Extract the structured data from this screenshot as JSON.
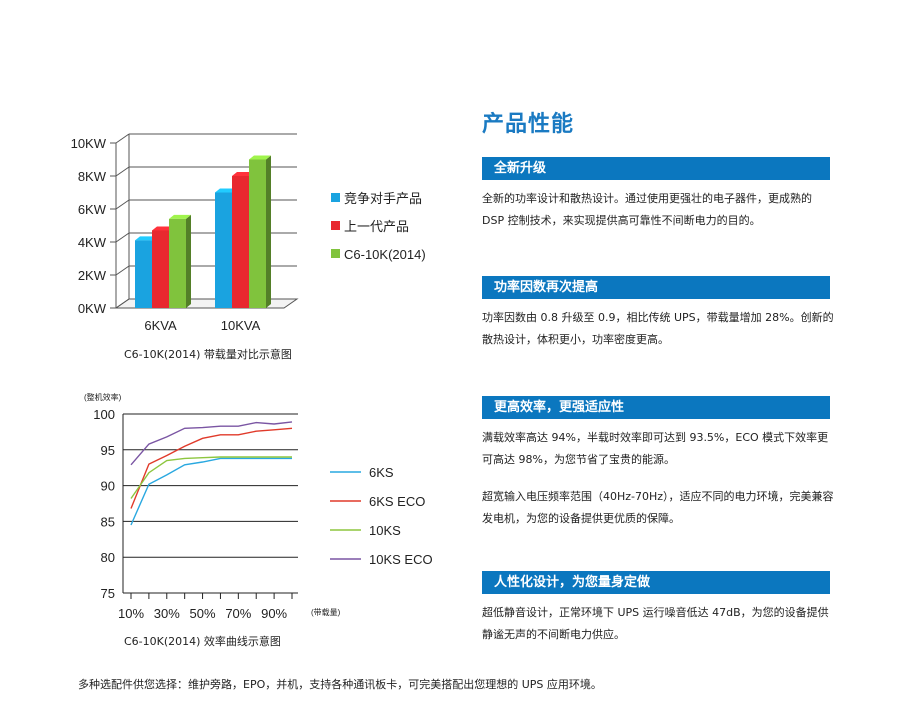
{
  "page": {
    "title": "产品性能",
    "footer": "多种选配件供您选择：维护旁路，EPO，并机，支持各种通讯板卡，可完美搭配出您理想的 UPS 应用环境。"
  },
  "sections": [
    {
      "heading": "全新升级",
      "paragraphs": [
        "全新的功率设计和散热设计。通过使用更强壮的电子器件，更成熟的 DSP 控制技术，来实现提供高可靠性不间断电力的目的。"
      ]
    },
    {
      "heading": "功率因数再次提高",
      "paragraphs": [
        "功率因数由 0.8 升级至 0.9，相比传统 UPS，带载量增加 28%。创新的散热设计，体积更小，功率密度更高。"
      ]
    },
    {
      "heading": "更高效率，更强适应性",
      "paragraphs": [
        "满载效率高达 94%，半载时效率即可达到 93.5%，ECO 模式下效率更可高达 98%，为您节省了宝贵的能源。",
        "超宽输入电压频率范围（40Hz-70Hz），适应不同的电力环境，完美兼容发电机，为您的设备提供更优质的保障。"
      ]
    },
    {
      "heading": "人性化设计，为您量身定做",
      "paragraphs": [
        "超低静音设计，正常环境下 UPS 运行噪音低达 47dB，为您的设备提供静谧无声的不间断电力供应。"
      ]
    }
  ],
  "colors": {
    "accent": "#0b77bf",
    "title": "#1a7ac2"
  },
  "chart_data": [
    {
      "type": "bar",
      "caption": "C6-10K(2014) 带载量对比示意图",
      "categories": [
        "6KVA",
        "10KVA"
      ],
      "y_ticks": [
        "0KW",
        "2KW",
        "4KW",
        "6KW",
        "8KW",
        "10KW"
      ],
      "ylim": [
        0,
        10
      ],
      "series": [
        {
          "name": "竞争对手产品",
          "color": "#1aa3e0",
          "values": [
            4.1,
            7.0
          ]
        },
        {
          "name": "上一代产品",
          "color": "#e8282f",
          "values": [
            4.7,
            8.0
          ]
        },
        {
          "name": "C6-10K(2014)",
          "color": "#80c33d",
          "values": [
            5.4,
            9.0
          ]
        }
      ],
      "legend_position": "right"
    },
    {
      "type": "line",
      "caption": "C6-10K(2014) 效率曲线示意图",
      "ylabel": "(整机效率)",
      "xlabel": "(带载量)",
      "ylim": [
        75,
        100
      ],
      "y_ticks": [
        "75",
        "80",
        "85",
        "90",
        "95",
        "100"
      ],
      "x": [
        10,
        20,
        30,
        40,
        50,
        60,
        70,
        80,
        90,
        100
      ],
      "x_tick_labels": [
        "10%",
        "30%",
        "50%",
        "70%",
        "90%"
      ],
      "series": [
        {
          "name": "6KS",
          "color": "#29a8e0",
          "values": [
            84.5,
            90.2,
            91.5,
            92.9,
            93.3,
            93.8,
            93.8,
            93.8,
            93.8,
            93.8
          ]
        },
        {
          "name": "6KS ECO",
          "color": "#e03a2a",
          "values": [
            86.8,
            93.0,
            94.2,
            95.5,
            96.6,
            97.1,
            97.1,
            97.6,
            97.8,
            98.0
          ]
        },
        {
          "name": "10KS",
          "color": "#8dc63f",
          "values": [
            88.2,
            91.8,
            93.5,
            93.8,
            93.9,
            94.0,
            94.0,
            94.0,
            94.0,
            94.0
          ]
        },
        {
          "name": "10KS ECO",
          "color": "#7a55a3",
          "values": [
            92.9,
            95.8,
            96.8,
            98.0,
            98.1,
            98.3,
            98.3,
            98.8,
            98.6,
            98.9
          ]
        }
      ],
      "legend_position": "right"
    }
  ]
}
